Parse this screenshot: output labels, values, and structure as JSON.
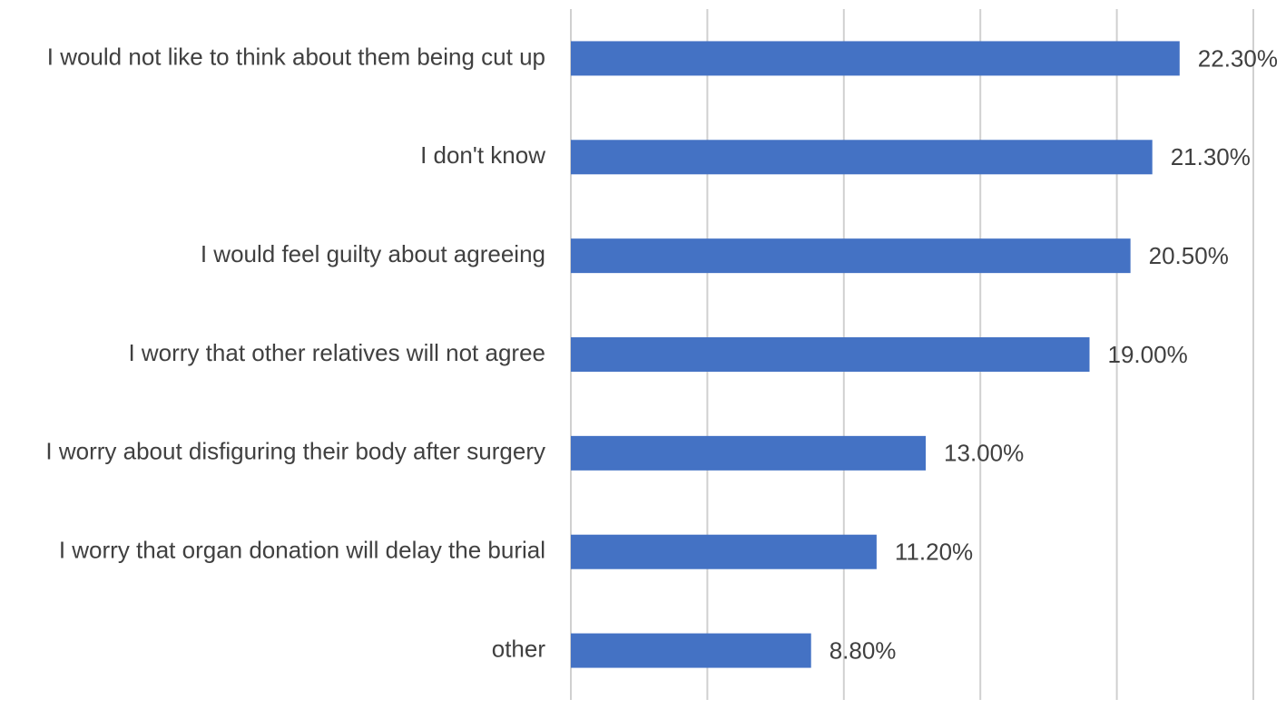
{
  "chart_data": {
    "type": "hbar",
    "categories": [
      "I would not like to think about them being cut up",
      "I don't know",
      "I would feel guilty about agreeing",
      "I worry that other relatives will not agree",
      "I worry about disfiguring their body after surgery",
      "I worry that organ donation will delay the burial",
      "other"
    ],
    "values": [
      22.3,
      21.3,
      20.5,
      19.0,
      13.0,
      11.2,
      8.8
    ],
    "value_labels": [
      "22.30%",
      "21.30%",
      "20.50%",
      "19.00%",
      "13.00%",
      "11.20%",
      "8.80%"
    ],
    "color": "#4472c4",
    "xlim": [
      0,
      25
    ],
    "xticks": [
      0,
      5,
      10,
      15,
      20,
      25
    ],
    "grid": true
  }
}
